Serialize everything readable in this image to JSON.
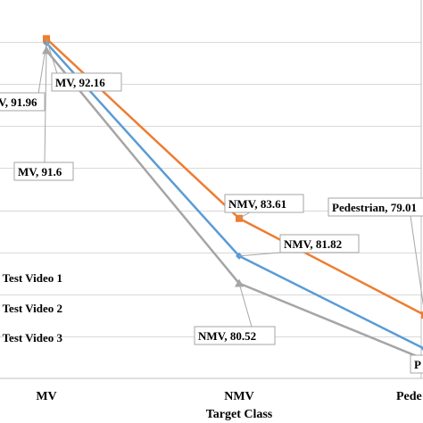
{
  "chart_data": {
    "type": "line",
    "title": "",
    "xlabel": "Target Class",
    "ylabel": "",
    "categories": [
      "MV",
      "NMV",
      "Pedestrian"
    ],
    "tick_labels_shown": [
      "MV",
      "NMV",
      "Pede"
    ],
    "ylim": [
      76,
      94
    ],
    "grid": true,
    "legend": "left",
    "series": [
      {
        "name": "Test Video 1",
        "legend_label": "Test Video 1",
        "color": "#5b9bd5",
        "marker": "diamond",
        "values": [
          91.96,
          81.82,
          77.4
        ]
      },
      {
        "name": "Test Video 2",
        "legend_label": "Test Video 2",
        "color": "#ed7d31",
        "marker": "square",
        "values": [
          92.16,
          83.61,
          79.01
        ]
      },
      {
        "name": "Test Video 3",
        "legend_label": "Test Video 3",
        "color": "#a5a5a5",
        "marker": "triangle",
        "values": [
          91.6,
          80.52,
          76.9
        ]
      }
    ],
    "annotations": [
      {
        "series": 1,
        "index": 0,
        "label": "MV, 92.16"
      },
      {
        "series": 0,
        "index": 0,
        "label": "V, 91.96"
      },
      {
        "series": 2,
        "index": 0,
        "label": "MV, 91.6"
      },
      {
        "series": 1,
        "index": 1,
        "label": "NMV, 83.61"
      },
      {
        "series": 0,
        "index": 1,
        "label": "NMV, 81.82"
      },
      {
        "series": 2,
        "index": 1,
        "label": "NMV, 80.52"
      },
      {
        "series": 1,
        "index": 2,
        "label": "Pedestrian, 79.01"
      },
      {
        "series": 2,
        "index": 2,
        "label": "P"
      }
    ]
  }
}
